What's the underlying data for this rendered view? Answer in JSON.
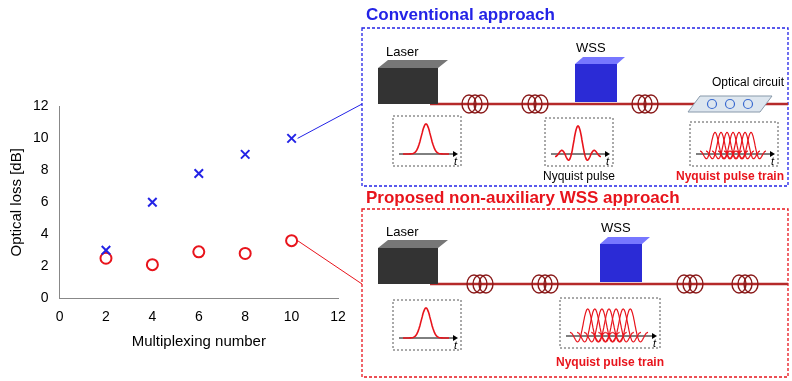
{
  "chart_data": {
    "type": "scatter",
    "x_label": "Multiplexing number",
    "y_label": "Optical loss [dB]",
    "xlim": [
      0,
      12
    ],
    "ylim": [
      0,
      12
    ],
    "xticks": [
      0,
      2,
      4,
      6,
      8,
      10,
      12
    ],
    "yticks": [
      0,
      2,
      4,
      6,
      8,
      10,
      12
    ],
    "grid": false,
    "series": [
      {
        "color": "#2323e6",
        "marker": "x",
        "x": [
          2,
          4,
          6,
          8,
          10
        ],
        "values": [
          3,
          6,
          7.8,
          9,
          10
        ]
      },
      {
        "color": "#e8141c",
        "marker": "o",
        "x": [
          2,
          4,
          6,
          8,
          10
        ],
        "values": [
          2.5,
          2.1,
          2.9,
          2.8,
          3.6
        ]
      }
    ]
  },
  "diagram": {
    "panels": [
      {
        "title": "Conventional approach",
        "color": "#2323e6",
        "laser": "Laser",
        "wss": "WSS",
        "circuit": "Optical circuit",
        "pulse": "Nyquist pulse",
        "train": "Nyquist pulse train",
        "time_axis": "t"
      },
      {
        "title": "Proposed non-auxiliary WSS approach",
        "color": "#e8141c",
        "laser": "Laser",
        "wss": "WSS",
        "train": "Nyquist pulse train",
        "time_axis": "t"
      }
    ]
  }
}
